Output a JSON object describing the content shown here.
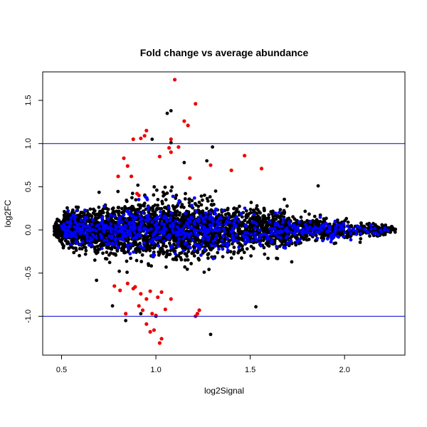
{
  "chart_data": {
    "type": "scatter",
    "title": "Fold change vs average abundance",
    "xlabel": "log2Signal",
    "ylabel": "log2FC",
    "xlim": [
      0.4,
      2.32
    ],
    "ylim": [
      -1.45,
      1.83
    ],
    "xticks": [
      0.5,
      1.0,
      1.5,
      2.0
    ],
    "xtick_labels": [
      "0.5",
      "1.0",
      "1.5",
      "2.0"
    ],
    "yticks": [
      -1.0,
      -0.5,
      0.0,
      0.5,
      1.0,
      1.5
    ],
    "ytick_labels": [
      "-1.0",
      "-0.5",
      "0.0",
      "0.5",
      "1.0",
      "1.5"
    ],
    "hlines": [
      1.0,
      -1.0
    ],
    "hline_color": "#0000cc",
    "grid": false,
    "colors": {
      "black": "#000000",
      "blue": "#0000ff",
      "red": "#ee0000"
    },
    "red_points": [
      [
        1.1,
        1.74
      ],
      [
        1.21,
        1.46
      ],
      [
        1.15,
        1.26
      ],
      [
        1.17,
        1.21
      ],
      [
        0.95,
        1.15
      ],
      [
        0.88,
        1.05
      ],
      [
        0.92,
        1.06
      ],
      [
        0.94,
        1.09
      ],
      [
        1.08,
        1.05
      ],
      [
        1.07,
        0.95
      ],
      [
        1.12,
        0.96
      ],
      [
        1.02,
        0.85
      ],
      [
        0.83,
        0.83
      ],
      [
        1.4,
        0.69
      ],
      [
        1.47,
        0.86
      ],
      [
        1.56,
        0.71
      ],
      [
        1.29,
        0.75
      ],
      [
        0.87,
        0.62
      ],
      [
        0.9,
        0.42
      ],
      [
        0.91,
        0.4
      ],
      [
        1.08,
        0.9
      ],
      [
        1.18,
        0.6
      ],
      [
        0.8,
        0.62
      ],
      [
        0.85,
        0.74
      ],
      [
        0.78,
        -0.65
      ],
      [
        0.81,
        -0.7
      ],
      [
        0.85,
        -0.62
      ],
      [
        0.88,
        -0.68
      ],
      [
        0.89,
        -0.66
      ],
      [
        0.92,
        -0.74
      ],
      [
        0.95,
        -0.8
      ],
      [
        0.97,
        -0.71
      ],
      [
        1.01,
        -0.78
      ],
      [
        1.03,
        -0.72
      ],
      [
        0.91,
        -0.88
      ],
      [
        0.93,
        -0.93
      ],
      [
        0.98,
        -0.97
      ],
      [
        1.0,
        -0.99
      ],
      [
        1.05,
        -0.92
      ],
      [
        0.84,
        -0.97
      ],
      [
        1.22,
        -0.97
      ],
      [
        1.21,
        -1.0
      ],
      [
        1.23,
        -0.93
      ],
      [
        0.95,
        -1.09
      ],
      [
        0.99,
        -1.16
      ],
      [
        1.03,
        -1.26
      ],
      [
        1.02,
        -1.31
      ],
      [
        0.97,
        -1.18
      ],
      [
        1.08,
        -0.8
      ]
    ],
    "notable_black_points": [
      [
        1.08,
        1.38
      ],
      [
        1.06,
        1.35
      ],
      [
        1.08,
        1.01
      ],
      [
        0.98,
        1.05
      ],
      [
        1.3,
        0.96
      ],
      [
        1.86,
        0.51
      ],
      [
        1.29,
        -1.21
      ],
      [
        1.53,
        -0.89
      ],
      [
        1.72,
        -0.37
      ],
      [
        0.77,
        -0.88
      ],
      [
        1.0,
        -1.0
      ],
      [
        0.84,
        -1.05
      ],
      [
        0.92,
        -0.97
      ],
      [
        1.15,
        0.78
      ],
      [
        1.27,
        0.8
      ]
    ]
  }
}
